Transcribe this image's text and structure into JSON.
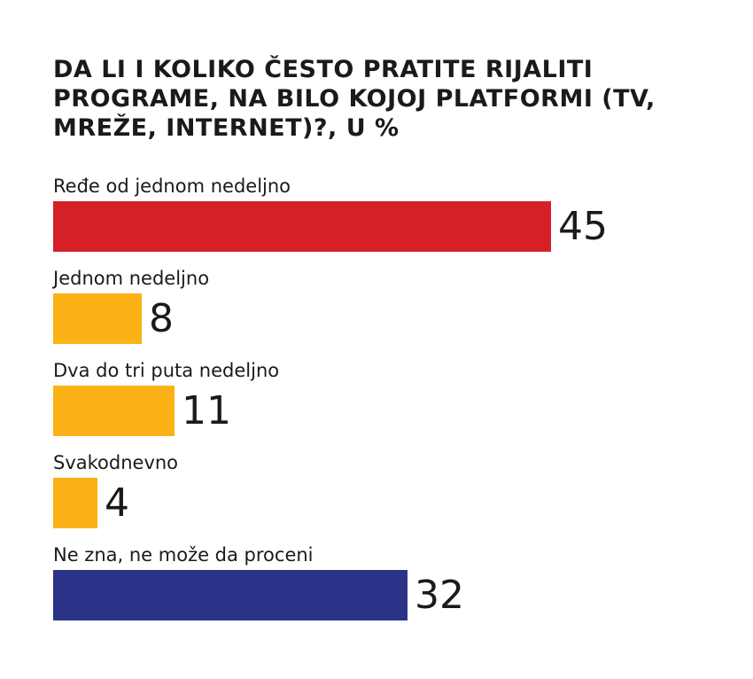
{
  "chart_data": {
    "type": "bar",
    "orientation": "horizontal",
    "title": "DA LI I KOLIKO ČESTO PRATITE RIJALITI PROGRAME, NA BILO KOJOJ PLATFORMI (TV, MREŽE, INTERNET)?, U %",
    "categories": [
      "Ređe od jednom nedeljno",
      "Jednom nedeljno",
      "Dva do tri puta nedeljno",
      "Svakodnevno",
      "Ne zna, ne može da proceni"
    ],
    "values": [
      45,
      8,
      11,
      4,
      32
    ],
    "colors": [
      "#d62027",
      "#fbb217",
      "#fbb217",
      "#fbb217",
      "#2b3388"
    ],
    "xlim": [
      0,
      45
    ],
    "xlabel": "",
    "ylabel": ""
  }
}
